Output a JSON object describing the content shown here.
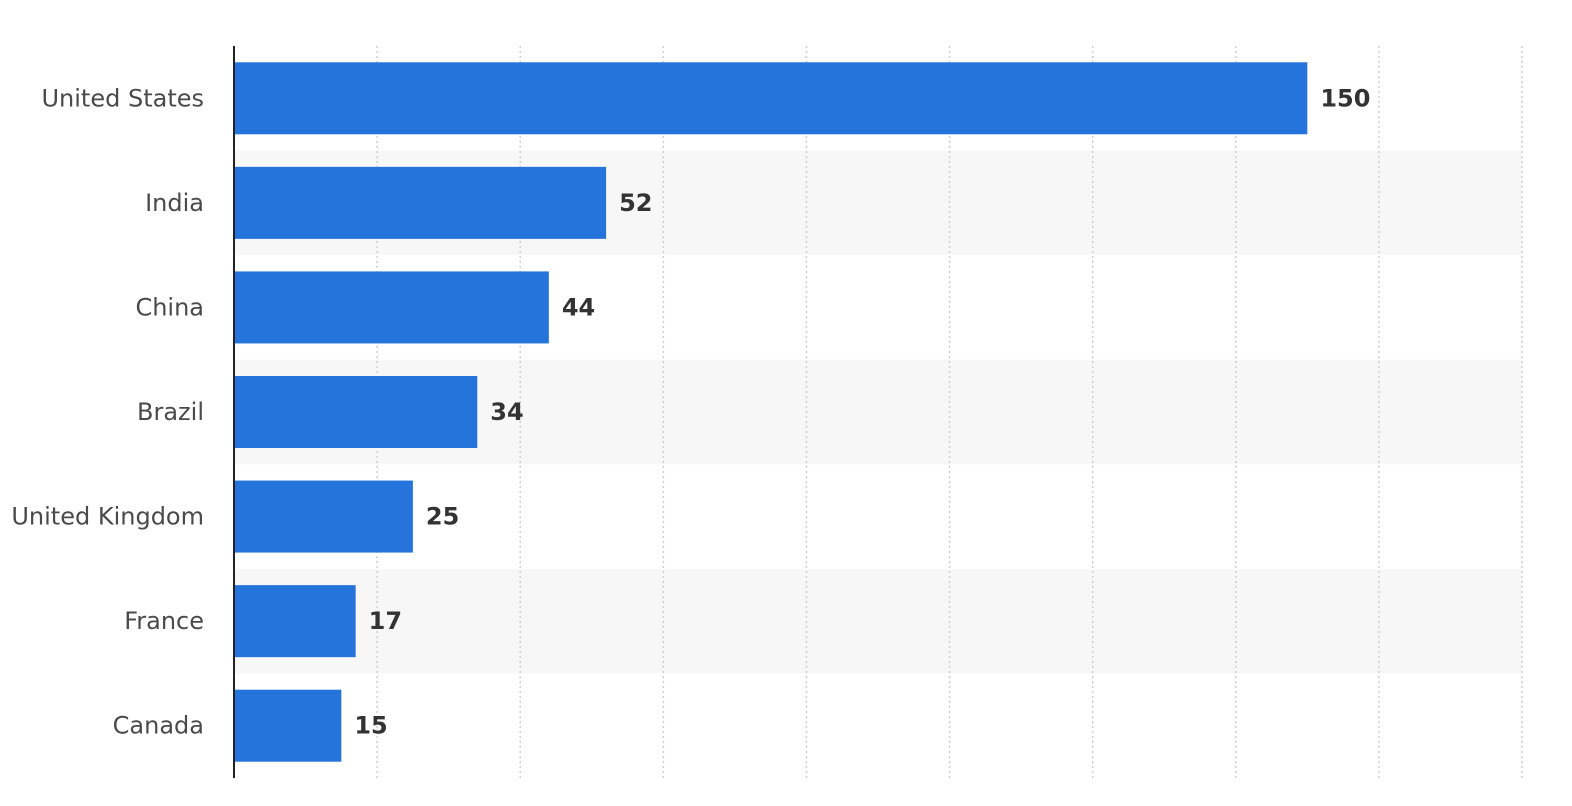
{
  "chart_data": {
    "type": "bar",
    "orientation": "horizontal",
    "categories": [
      "United States",
      "India",
      "China",
      "Brazil",
      "United Kingdom",
      "France",
      "Canada"
    ],
    "values": [
      150,
      52,
      44,
      34,
      25,
      17,
      15
    ],
    "xlim": [
      0,
      180
    ],
    "grid": "vertical-dotted",
    "data_labels": true,
    "colors": {
      "bar": "#2574db",
      "band": "#f7f7f7",
      "grid": "#cfcfcf",
      "axis": "#222222"
    }
  }
}
